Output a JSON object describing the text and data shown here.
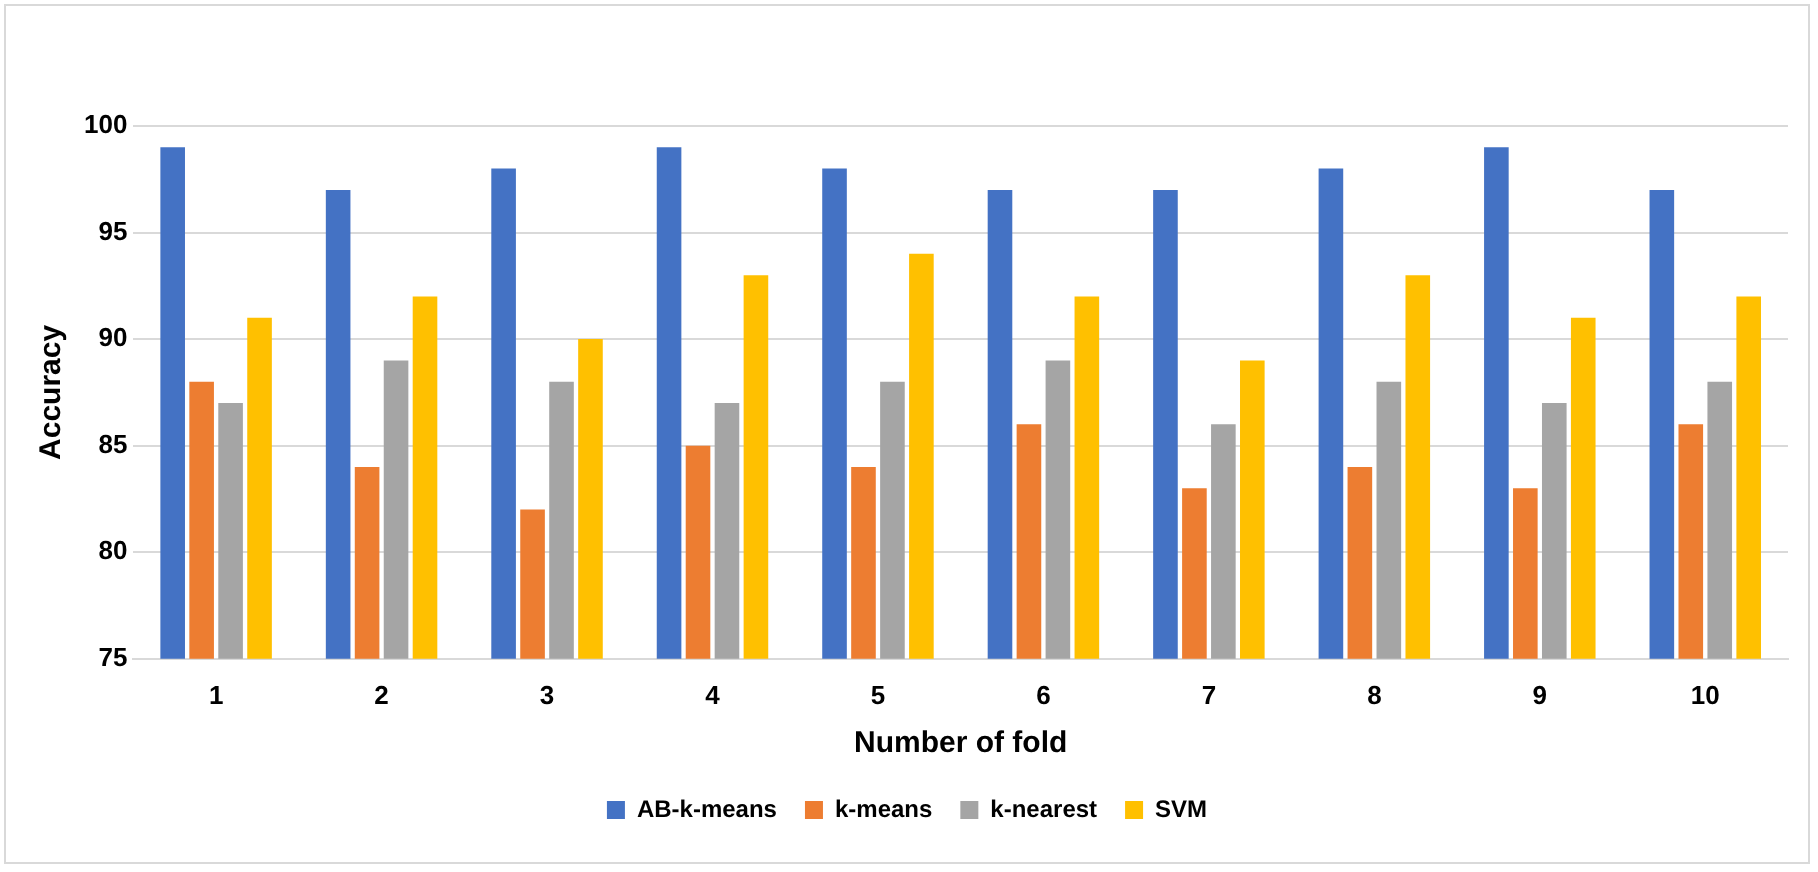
{
  "chart_data": {
    "type": "bar",
    "xlabel": "Number of fold",
    "ylabel": "Accuracy",
    "categories": [
      "1",
      "2",
      "3",
      "4",
      "5",
      "6",
      "7",
      "8",
      "9",
      "10"
    ],
    "series": [
      {
        "name": "AB-k-means",
        "color": "#4472c4",
        "values": [
          99,
          97,
          98,
          99,
          98,
          97,
          97,
          98,
          99,
          97
        ]
      },
      {
        "name": "k-means",
        "color": "#ed7d31",
        "values": [
          88,
          84,
          82,
          85,
          84,
          86,
          83,
          84,
          83,
          86
        ]
      },
      {
        "name": "k-nearest",
        "color": "#a5a5a5",
        "values": [
          87,
          89,
          88,
          87,
          88,
          89,
          86,
          88,
          87,
          88
        ]
      },
      {
        "name": "SVM",
        "color": "#ffc000",
        "values": [
          91,
          92,
          90,
          93,
          94,
          92,
          89,
          93,
          91,
          92
        ]
      }
    ],
    "ylim": [
      75,
      100
    ],
    "yticks": [
      75,
      80,
      85,
      90,
      95,
      100
    ],
    "grid": "y",
    "legend": "bottom"
  }
}
